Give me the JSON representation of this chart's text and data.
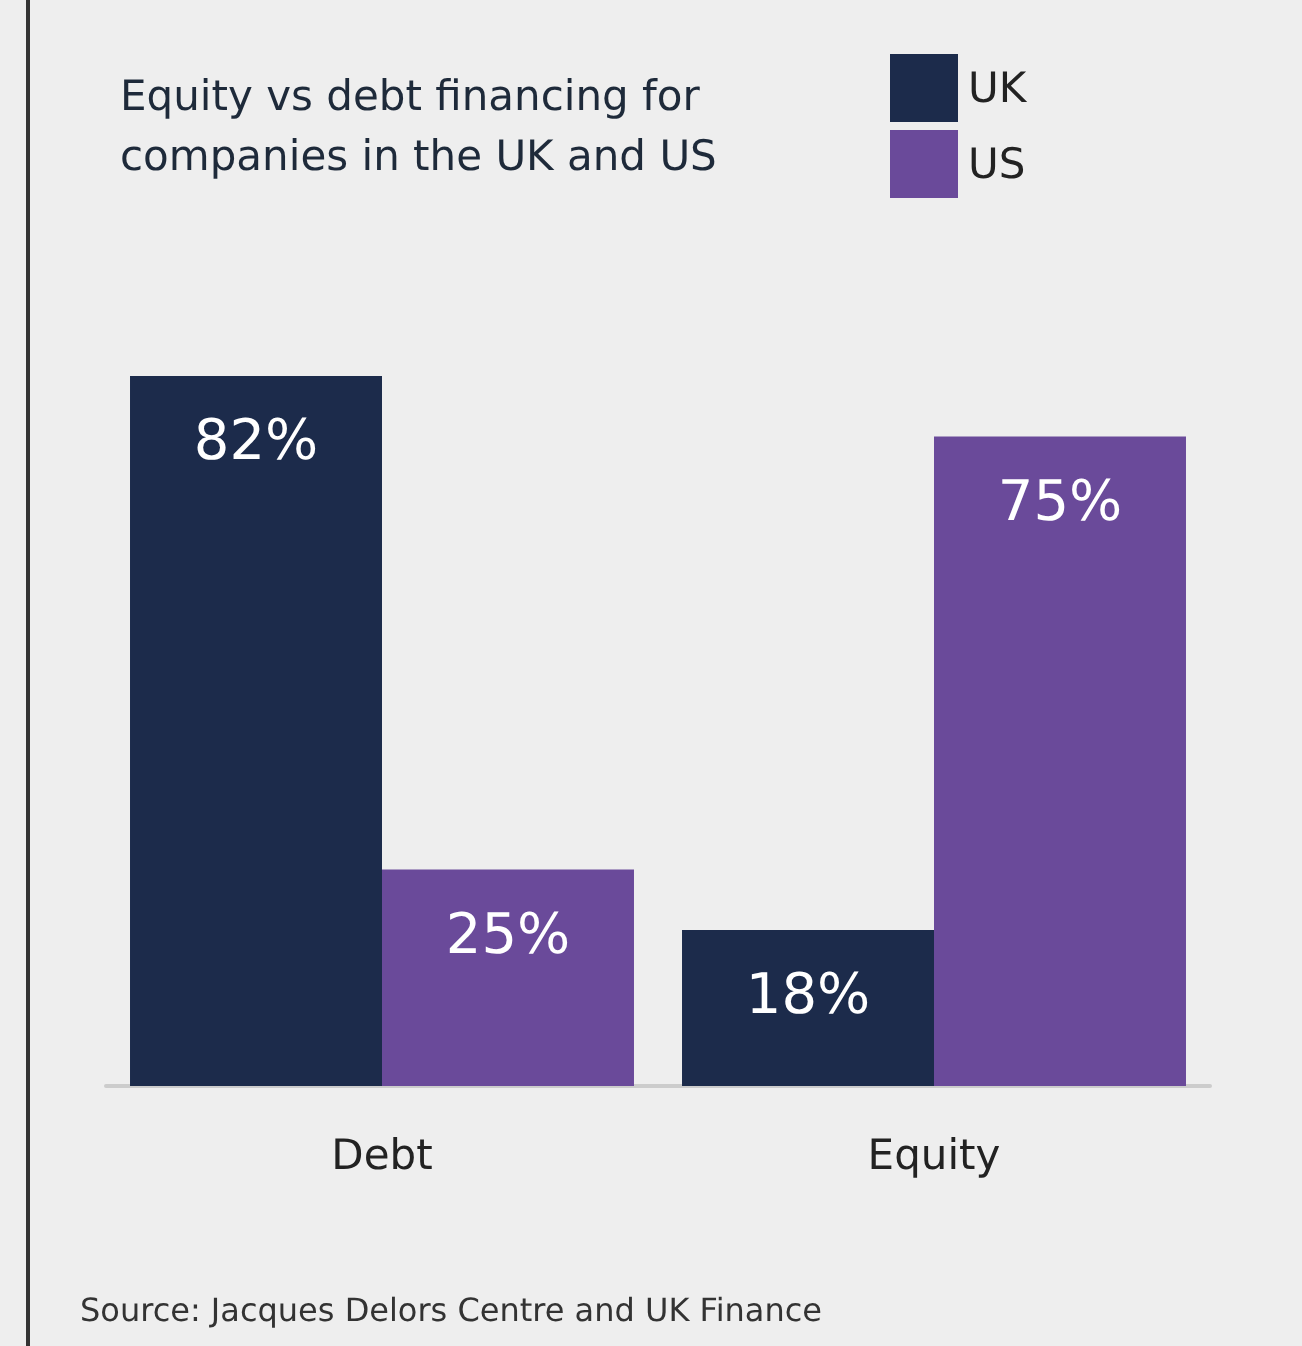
{
  "chart_data": {
    "type": "bar",
    "title": "Equity vs debt financing for\ncompanies in the UK and US",
    "categories": [
      "Debt",
      "Equity"
    ],
    "series": [
      {
        "name": "UK",
        "color": "#1c2b4b",
        "values": [
          82,
          18
        ],
        "value_labels": [
          "82%",
          "18%"
        ]
      },
      {
        "name": "US",
        "color": "#6a4a9a",
        "values": [
          25,
          75
        ],
        "value_labels": [
          "25%",
          "75%"
        ]
      }
    ],
    "legend": "top right",
    "annotations": [
      "Source: Jacques Delors Centre and UK Finance"
    ]
  }
}
